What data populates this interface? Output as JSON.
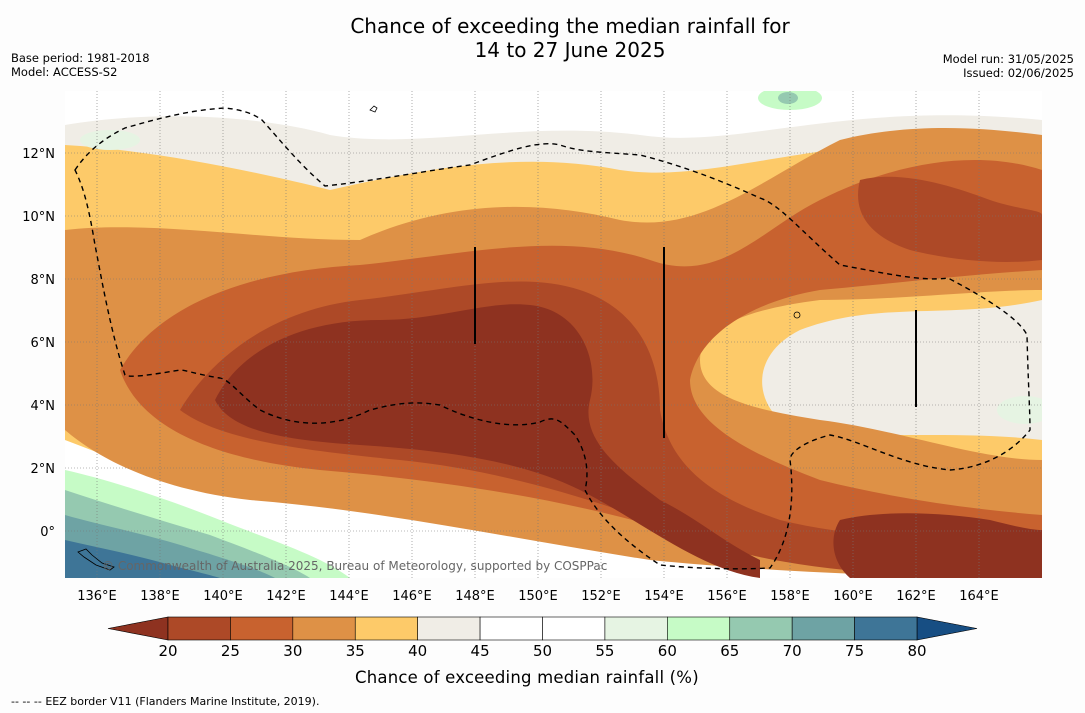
{
  "title_line1": "Chance of exceeding the median rainfall for",
  "title_line2": "14 to 27 June 2025",
  "base_period": "Base period: 1981-2018",
  "model": "Model: ACCESS-S2",
  "model_run": "Model run: 31/05/2025",
  "issued": "Issued: 02/06/2025",
  "copyright": "© Commonwealth of Australia 2025, Bureau of Meteorology, supported by COSPPac",
  "lat_labels": [
    "12°N",
    "10°N",
    "8°N",
    "6°N",
    "4°N",
    "2°N",
    "0°"
  ],
  "lon_labels": [
    "136°E",
    "138°E",
    "140°E",
    "142°E",
    "144°E",
    "146°E",
    "148°E",
    "150°E",
    "152°E",
    "154°E",
    "156°E",
    "158°E",
    "160°E",
    "162°E",
    "164°E"
  ],
  "colorbar": {
    "ticks": [
      "20",
      "25",
      "30",
      "35",
      "40",
      "45",
      "50",
      "55",
      "60",
      "65",
      "70",
      "75",
      "80"
    ],
    "colors": [
      "#ad4927",
      "#c8622f",
      "#de9146",
      "#fdca69",
      "#f0ede6",
      "#ffffff",
      "#ffffff",
      "#e6f4e3",
      "#c6fbc6",
      "#95c9b0",
      "#6ea3a4",
      "#3e7597"
    ],
    "low_color": "#8e3220",
    "high_color": "#174e83",
    "label": "Chance of exceeding median rainfall (%)"
  },
  "footnote_dashes": "--  --  --",
  "footnote_text": "EEZ border V11 (Flanders Marine Institute, 2019)."
}
